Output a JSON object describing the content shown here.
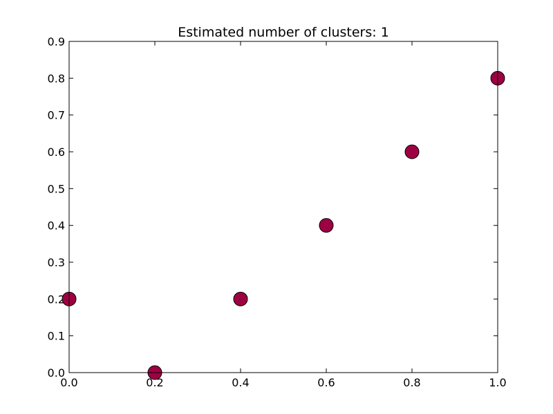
{
  "chart_data": {
    "type": "scatter",
    "title": "Estimated number of clusters: 1",
    "xlabel": "",
    "ylabel": "",
    "xlim": [
      0.0,
      1.0
    ],
    "ylim": [
      0.0,
      0.9
    ],
    "x_ticks": [
      "0.0",
      "0.2",
      "0.4",
      "0.6",
      "0.8",
      "1.0"
    ],
    "y_ticks": [
      "0.0",
      "0.1",
      "0.2",
      "0.3",
      "0.4",
      "0.5",
      "0.6",
      "0.7",
      "0.8",
      "0.9"
    ],
    "grid": false,
    "legend": "none",
    "series": [
      {
        "color": "#9e0142",
        "edge_color": "#000000",
        "points": [
          {
            "x": 0.0,
            "y": 0.2
          },
          {
            "x": 0.2,
            "y": 0.0
          },
          {
            "x": 0.4,
            "y": 0.2
          },
          {
            "x": 0.6,
            "y": 0.4
          },
          {
            "x": 0.8,
            "y": 0.6
          },
          {
            "x": 1.0,
            "y": 0.8
          }
        ]
      }
    ]
  }
}
